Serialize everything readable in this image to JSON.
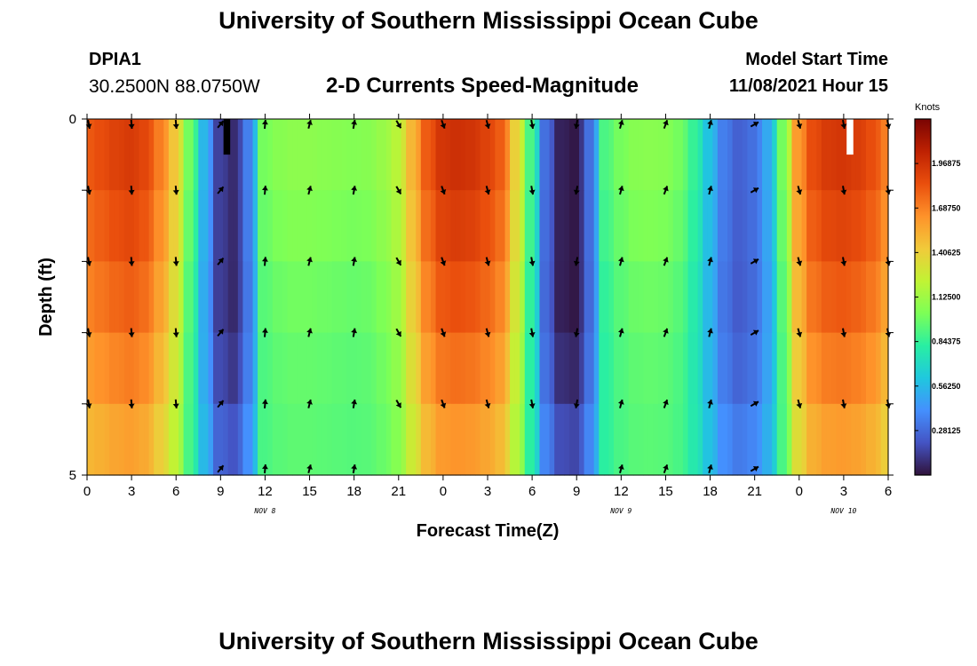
{
  "header": {
    "title": "University of Southern Mississippi Ocean Cube",
    "station_id": "DPIA1",
    "station_coords": "30.2500N  88.0750W",
    "chart_title": "2-D Currents Speed-Magnitude",
    "model_start_label": "Model Start Time",
    "model_start_value": "11/08/2021 Hour 15"
  },
  "footer": {
    "title": "University of Southern Mississippi Ocean Cube"
  },
  "chart_data": {
    "type": "heatmap",
    "title": "2-D Currents Speed-Magnitude",
    "xlabel": "Forecast Time(Z)",
    "ylabel": "Depth (ft)",
    "x_hours": [
      0,
      1,
      2,
      3,
      4,
      5,
      6,
      7,
      8,
      9,
      10,
      11,
      12,
      13,
      14,
      15,
      16,
      17,
      18,
      19,
      20,
      21,
      22,
      23,
      24,
      25,
      26,
      27,
      28,
      29,
      30,
      31,
      32,
      33,
      34,
      35,
      36,
      37,
      38,
      39,
      40,
      41,
      42,
      43,
      44,
      45,
      46,
      47,
      48,
      49,
      50,
      51,
      52,
      53,
      54
    ],
    "xlim": [
      0,
      54
    ],
    "x_tick_values": [
      0,
      3,
      6,
      9,
      12,
      15,
      18,
      21,
      24,
      27,
      30,
      33,
      36,
      39,
      42,
      45,
      48,
      51,
      54
    ],
    "x_tick_labels": [
      "0",
      "3",
      "6",
      "9",
      "12",
      "15",
      "18",
      "21",
      "0",
      "3",
      "6",
      "9",
      "12",
      "15",
      "18",
      "21",
      "0",
      "3",
      "6"
    ],
    "date_labels": [
      {
        "hour": 12,
        "label": "NOV 8"
      },
      {
        "hour": 36,
        "label": "NOV 9"
      },
      {
        "hour": 51,
        "label": "NOV 10"
      }
    ],
    "ylim": [
      0,
      5
    ],
    "y_tick_labels": [
      {
        "value": 0,
        "label": "0"
      },
      {
        "value": 5,
        "label": "5"
      }
    ],
    "depth_layers": 5,
    "surface_speed_knots": [
      1.8,
      1.85,
      1.9,
      1.93,
      1.88,
      1.7,
      1.45,
      1.0,
      0.55,
      0.15,
      0.08,
      0.35,
      1.0,
      1.05,
      1.07,
      1.07,
      1.06,
      1.05,
      1.04,
      1.05,
      1.1,
      1.2,
      1.5,
      1.8,
      1.95,
      1.98,
      1.96,
      1.9,
      1.8,
      1.4,
      0.9,
      0.3,
      0.05,
      0.02,
      0.3,
      0.9,
      1.0,
      1.05,
      1.06,
      1.05,
      1.0,
      0.85,
      0.6,
      0.35,
      0.25,
      0.3,
      0.5,
      1.0,
      1.6,
      1.85,
      1.93,
      1.95,
      1.92,
      1.85,
      1.7
    ],
    "layer_speed_factors": [
      1.0,
      0.97,
      0.93,
      0.88,
      0.82
    ],
    "layer_trough_offsets": [
      0.0,
      0.0,
      0.0,
      0.05,
      0.15
    ],
    "vector_hours": [
      0,
      3,
      6,
      9,
      12,
      15,
      18,
      21,
      24,
      27,
      30,
      33,
      36,
      39,
      42,
      45,
      48,
      51,
      54
    ],
    "vector_depths": [
      0,
      1,
      2,
      3,
      4,
      5
    ],
    "vector_directions_deg": [
      170,
      175,
      175,
      40,
      5,
      15,
      10,
      150,
      160,
      165,
      170,
      190,
      15,
      20,
      15,
      60,
      165,
      170,
      170
    ],
    "colorbar": {
      "unit": "Knots",
      "min": 0,
      "max": 2.25,
      "tick_values": [
        1.96875,
        1.6875,
        1.40625,
        1.125,
        0.84375,
        0.5625,
        0.28125
      ],
      "tick_labels": [
        "1.96875",
        "1.68750",
        "1.40625",
        "1.12500",
        "0.84375",
        "0.56250",
        "0.28125"
      ],
      "colormap": [
        "#30123b",
        "#4454c4",
        "#4490fe",
        "#1fc8de",
        "#29efa2",
        "#7dff56",
        "#c1f334",
        "#f1ca3a",
        "#fe922a",
        "#ea4f0d",
        "#be2102",
        "#7a0403"
      ]
    },
    "missing_cells": [
      {
        "hour": 9.2,
        "layer": 0,
        "color": "#000000"
      },
      {
        "hour": 51.2,
        "layer": 0,
        "color": "#ffffff"
      }
    ]
  }
}
